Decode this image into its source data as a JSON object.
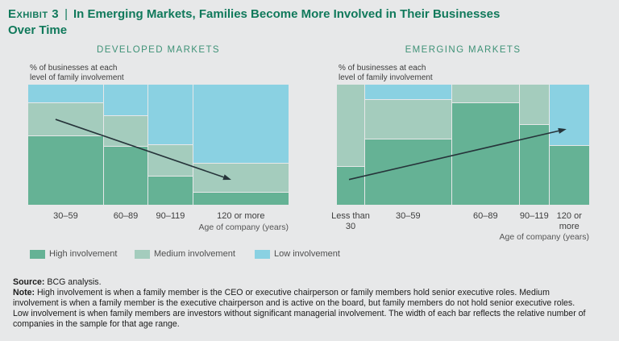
{
  "title": {
    "exhibit_label": "Exhibit 3",
    "separator": "|",
    "line1": "In Emerging Markets, Families Become More Involved in Their Businesses",
    "line2": "Over Time"
  },
  "colors": {
    "background": "#e7e8e9",
    "title_green": "#10795b",
    "header_green": "#3f9277",
    "high": "#65b295",
    "medium": "#a4ccbd",
    "low": "#8ad1e2",
    "arrow": "#26343a"
  },
  "legend": [
    {
      "key": "high",
      "label": "High involvement"
    },
    {
      "key": "medium",
      "label": "Medium involvement"
    },
    {
      "key": "low",
      "label": "Low involvement"
    }
  ],
  "chart_data": [
    {
      "type": "mosaic",
      "title": "DEVELOPED MARKETS",
      "ylabel_lines": [
        "% of businesses at each",
        "level of family involvement"
      ],
      "xlabel": "Age of company (years)",
      "segment_order_top_to_bottom": [
        "low",
        "medium",
        "high"
      ],
      "columns": [
        {
          "category": "30–59",
          "label_lines": [
            "30–59"
          ],
          "width_pct": 29,
          "segments": [
            {
              "level": "low",
              "value": 15
            },
            {
              "level": "medium",
              "value": 27
            },
            {
              "level": "high",
              "value": 58
            }
          ]
        },
        {
          "category": "60–89",
          "label_lines": [
            "60–89"
          ],
          "width_pct": 17,
          "segments": [
            {
              "level": "low",
              "value": 26
            },
            {
              "level": "medium",
              "value": 25
            },
            {
              "level": "high",
              "value": 49
            }
          ]
        },
        {
          "category": "90–119",
          "label_lines": [
            "90–119"
          ],
          "width_pct": 17,
          "segments": [
            {
              "level": "low",
              "value": 50
            },
            {
              "level": "medium",
              "value": 26
            },
            {
              "level": "high",
              "value": 24
            }
          ]
        },
        {
          "category": "120 or more",
          "label_lines": [
            "120 or more"
          ],
          "width_pct": 37,
          "segments": [
            {
              "level": "low",
              "value": 66
            },
            {
              "level": "medium",
              "value": 24
            },
            {
              "level": "high",
              "value": 10
            }
          ]
        }
      ],
      "trend_arrow": {
        "direction": "down-right",
        "x1_pct": 10.5,
        "y1_pct": 28.9,
        "x2_pct": 78,
        "y2_pct": 79.2
      }
    },
    {
      "type": "mosaic",
      "title": "EMERGING MARKETS",
      "ylabel_lines": [
        "% of businesses at each",
        "level of family involvement"
      ],
      "xlabel": "Age of company (years)",
      "segment_order_top_to_bottom": [
        "low",
        "medium",
        "high"
      ],
      "columns": [
        {
          "category": "Less than 30",
          "label_lines": [
            "Less than",
            "30"
          ],
          "width_pct": 11,
          "segments": [
            {
              "level": "medium",
              "value": 68
            },
            {
              "level": "high",
              "value": 32
            }
          ]
        },
        {
          "category": "30–59",
          "label_lines": [
            "30–59"
          ],
          "width_pct": 34.5,
          "segments": [
            {
              "level": "low",
              "value": 12
            },
            {
              "level": "medium",
              "value": 33
            },
            {
              "level": "high",
              "value": 55
            }
          ]
        },
        {
          "category": "60–89",
          "label_lines": [
            "60–89"
          ],
          "width_pct": 27,
          "segments": [
            {
              "level": "medium",
              "value": 15
            },
            {
              "level": "high",
              "value": 85
            }
          ]
        },
        {
          "category": "90–119",
          "label_lines": [
            "90–119"
          ],
          "width_pct": 11.5,
          "segments": [
            {
              "level": "medium",
              "value": 33
            },
            {
              "level": "high",
              "value": 67
            }
          ]
        },
        {
          "category": "120 or more",
          "label_lines": [
            "120 or",
            "more"
          ],
          "width_pct": 16,
          "segments": [
            {
              "level": "low",
              "value": 51
            },
            {
              "level": "high",
              "value": 49
            }
          ]
        }
      ],
      "trend_arrow": {
        "direction": "up-right",
        "x1_pct": 4.8,
        "y1_pct": 79,
        "x2_pct": 91,
        "y2_pct": 37
      }
    }
  ],
  "footer": {
    "source_label": "Source:",
    "source_text": " BCG analysis.",
    "note_label": "Note:",
    "note_text": " High involvement is when a family member is the CEO or executive chairperson or family members hold senior executive roles. Medium involvement is when a family member is the executive chairperson and is active on the board, but family members do not hold senior executive roles. Low involvement is when family members are investors without significant managerial involvement. The width of each bar reflects the relative number of companies in the sample for that age range."
  }
}
